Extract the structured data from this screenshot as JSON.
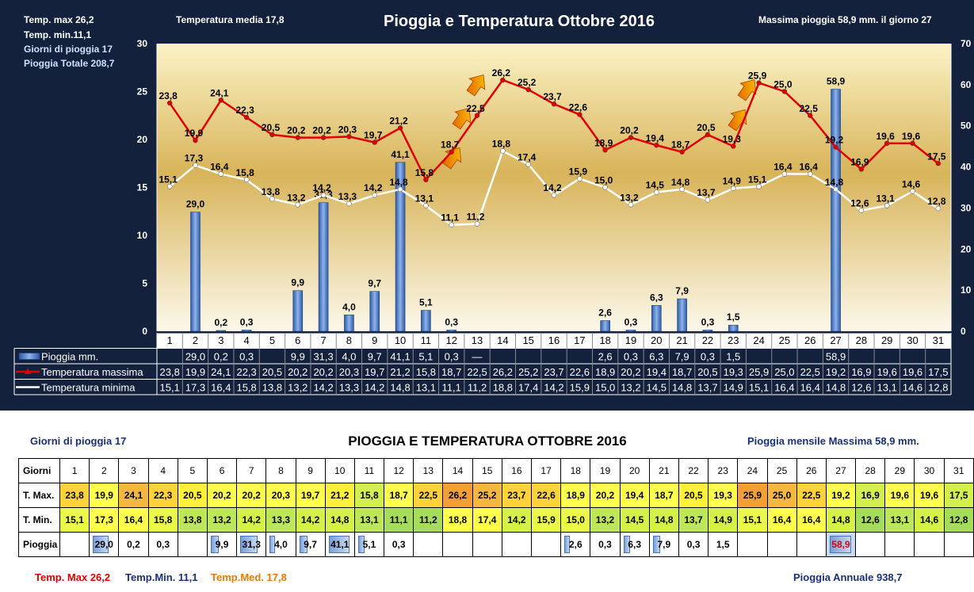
{
  "header": {
    "temp_max": "Temp. max  26,2",
    "temp_min": "Temp.  min.11,1",
    "rain_days": "Giorni  di pioggia  17",
    "rain_total": "Pioggia Totale  208,7",
    "temp_media": "Temperatura media  17,8",
    "title": "Pioggia e Temperatura Ottobre 2016",
    "max_rain": "Massima pioggia 58,9 mm. il giorno  27"
  },
  "legend": {
    "rain": "Pioggia mm.",
    "tmax": "Temperatura massima",
    "tmin": "Temperatura minima"
  },
  "colors": {
    "panel": "#14213d",
    "tmax_line": "#e00000",
    "tmin_line": "#ffffff",
    "bar": "#4a7fd0"
  },
  "chart_data": {
    "type": "bar+line",
    "title": "Pioggia e Temperatura Ottobre 2016",
    "x": [
      "1",
      "2",
      "3",
      "4",
      "5",
      "6",
      "7",
      "8",
      "9",
      "10",
      "11",
      "12",
      "13",
      "14",
      "15",
      "16",
      "17",
      "18",
      "19",
      "20",
      "21",
      "22",
      "23",
      "24",
      "25",
      "26",
      "27",
      "28",
      "29",
      "30",
      "31"
    ],
    "y_left": {
      "min": 0,
      "max": 30,
      "ticks": [
        "0",
        "5",
        "10",
        "15",
        "20",
        "25",
        "30"
      ]
    },
    "y_right": {
      "min": 0,
      "max": 70,
      "ticks": [
        "0",
        "10",
        "20",
        "30",
        "40",
        "50",
        "60",
        "70"
      ]
    },
    "series": [
      {
        "name": "Pioggia mm.",
        "axis": "right",
        "kind": "bar",
        "values": [
          null,
          29.0,
          0.2,
          0.3,
          null,
          9.9,
          31.3,
          4.0,
          9.7,
          41.1,
          5.1,
          0.3,
          null,
          null,
          null,
          null,
          null,
          2.6,
          0.3,
          6.3,
          7.9,
          0.3,
          1.5,
          null,
          null,
          null,
          58.9,
          null,
          null,
          null,
          null
        ],
        "labels": [
          "",
          "29,0",
          "0,2",
          "0,3",
          "",
          "9,9",
          "31,3",
          "4,0",
          "9,7",
          "41,1",
          "5,1",
          "0,3",
          "",
          "",
          "",
          "",
          "",
          "2,6",
          "0,3",
          "6,3",
          "7,9",
          "0,3",
          "1,5",
          "",
          "",
          "",
          "58,9",
          "",
          "",
          "",
          ""
        ],
        "table_labels": [
          "",
          "29,0",
          "0,2",
          "0,3",
          "",
          "9,9",
          "31,3",
          "4,0",
          "9,7",
          "41,1",
          "5,1",
          "0,3",
          "—",
          "",
          "",
          "",
          "",
          "2,6",
          "0,3",
          "6,3",
          "7,9",
          "0,3",
          "1,5",
          "",
          "",
          "",
          "58,9",
          "",
          "",
          "",
          ""
        ]
      },
      {
        "name": "Temperatura massima",
        "axis": "left",
        "kind": "line",
        "values": [
          23.8,
          19.9,
          24.1,
          22.3,
          20.5,
          20.2,
          20.2,
          20.3,
          19.7,
          21.2,
          15.8,
          18.7,
          22.5,
          26.2,
          25.2,
          23.7,
          22.6,
          18.9,
          20.2,
          19.4,
          18.7,
          20.5,
          19.3,
          25.9,
          25.0,
          22.5,
          19.2,
          16.9,
          19.6,
          19.6,
          17.5
        ],
        "labels": [
          "23,8",
          "19,9",
          "24,1",
          "22,3",
          "20,5",
          "20,2",
          "20,2",
          "20,3",
          "19,7",
          "21,2",
          "15,8",
          "18,7",
          "22,5",
          "26,2",
          "25,2",
          "23,7",
          "22,6",
          "18,9",
          "20,2",
          "19,4",
          "18,7",
          "20,5",
          "19,3",
          "25,9",
          "25,0",
          "22,5",
          "19,2",
          "16,9",
          "19,6",
          "19,6",
          "17,5"
        ]
      },
      {
        "name": "Temperatura minima",
        "axis": "left",
        "kind": "line",
        "values": [
          15.1,
          17.3,
          16.4,
          15.8,
          13.8,
          13.2,
          14.2,
          13.3,
          14.2,
          14.8,
          13.1,
          11.1,
          11.2,
          18.8,
          17.4,
          14.2,
          15.9,
          15.0,
          13.2,
          14.5,
          14.8,
          13.7,
          14.9,
          15.1,
          16.4,
          16.4,
          14.8,
          12.6,
          13.1,
          14.6,
          12.8
        ],
        "labels": [
          "15,1",
          "17,3",
          "16,4",
          "15,8",
          "13,8",
          "13,2",
          "14,2",
          "13,3",
          "14,2",
          "14,8",
          "13,1",
          "11,1",
          "11,2",
          "18,8",
          "17,4",
          "14,2",
          "15,9",
          "15,0",
          "13,2",
          "14,5",
          "14,8",
          "13,7",
          "14,9",
          "15,1",
          "16,4",
          "16,4",
          "14,8",
          "12,6",
          "13,1",
          "14,6",
          "12,8"
        ]
      }
    ],
    "grid": false,
    "legend_position": "data-table-below"
  },
  "bottom": {
    "rain_days": "Giorni di pioggia 17",
    "title": "PIOGGIA E TEMPERATURA OTTOBRE 2016",
    "max_monthly": "Pioggia mensile Massima  58,9  mm.",
    "rows": {
      "days": "Giorni",
      "tmax": "T. Max.",
      "tmin": "T. Min.",
      "rain": "Pioggia"
    },
    "temp_max": "Temp. Max  26,2",
    "temp_min": "Temp.Min.  11,1",
    "temp_med": "Temp.Med. 17,8",
    "annual": "Pioggia Annuale  938,7"
  }
}
